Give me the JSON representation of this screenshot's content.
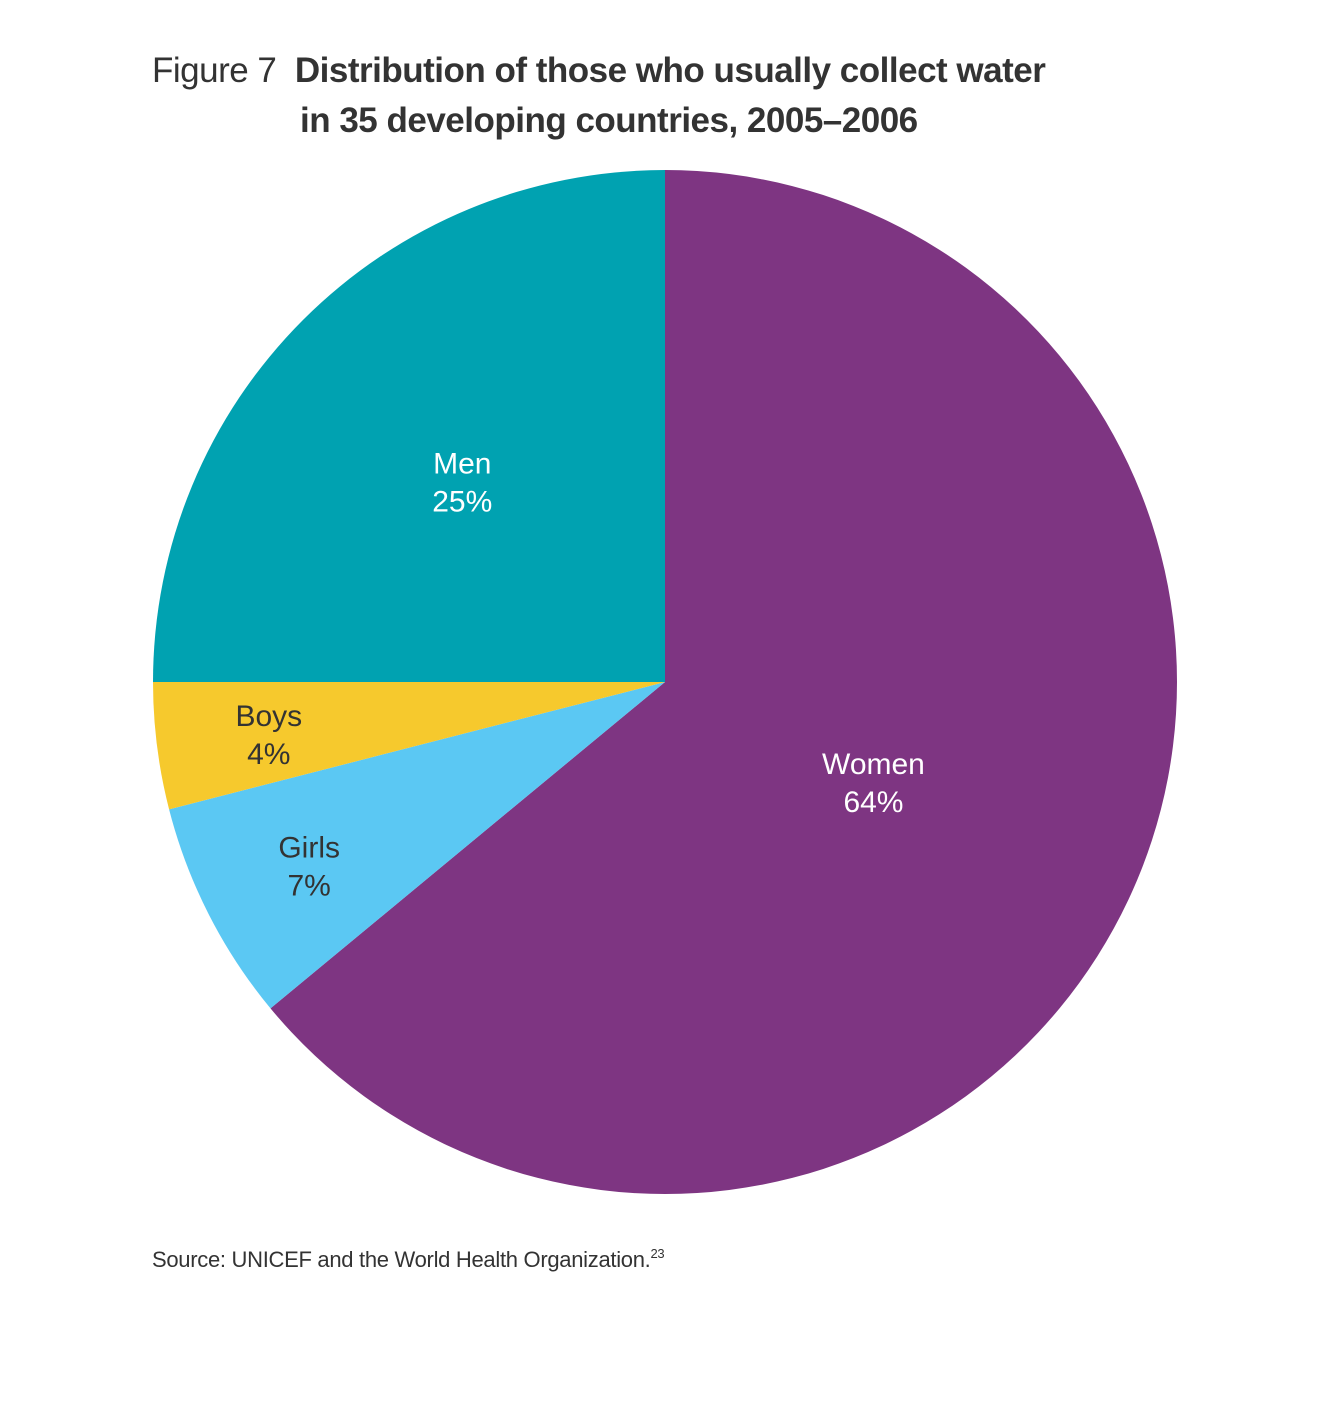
{
  "figure": {
    "label": "Figure 7",
    "title_line1": "Distribution of those who usually collect water",
    "title_line2": "in 35 developing countries, 2005–2006"
  },
  "chart_data": {
    "type": "pie",
    "title": "Distribution of those who usually collect water in 35 developing countries, 2005–2006",
    "slices": [
      {
        "label": "Women",
        "value": 64,
        "value_label": "64%",
        "color": "#7e3582",
        "text_color": "#ffffff"
      },
      {
        "label": "Girls",
        "value": 7,
        "value_label": "7%",
        "color": "#5bc8f3",
        "text_color": "#333333"
      },
      {
        "label": "Boys",
        "value": 4,
        "value_label": "4%",
        "color": "#f6c92d",
        "text_color": "#333333"
      },
      {
        "label": "Men",
        "value": 25,
        "value_label": "25%",
        "color": "#00a2b1",
        "text_color": "#ffffff"
      }
    ],
    "start_angle": "12 o'clock",
    "direction": "clockwise"
  },
  "source": {
    "text": "Source: UNICEF and the World Health Organization.",
    "footnote": "23"
  }
}
